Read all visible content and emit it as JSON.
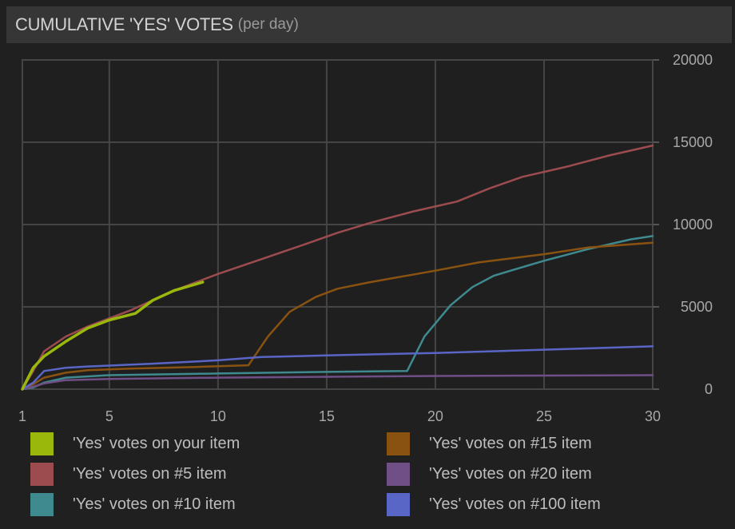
{
  "header": {
    "title": "CUMULATIVE 'YES' VOTES",
    "subtitle": "(per day)"
  },
  "chart_data": {
    "type": "line",
    "title": "CUMULATIVE 'YES' VOTES (per day)",
    "xlabel": "",
    "ylabel": "",
    "xlim": [
      1,
      30
    ],
    "ylim": [
      0,
      20000
    ],
    "xticks": [
      1,
      5,
      10,
      15,
      20,
      25,
      30
    ],
    "yticks": [
      0,
      5000,
      10000,
      15000,
      20000
    ],
    "grid": true,
    "y_axis_side": "right",
    "legend_position": "bottom",
    "series": [
      {
        "name": "'Yes' votes on your item",
        "color": "#9ab80c",
        "x": [
          1,
          1.5,
          2,
          3,
          4,
          5,
          6.2,
          7,
          8,
          9.3
        ],
        "y": [
          0,
          1300,
          2000,
          2900,
          3700,
          4200,
          4600,
          5400,
          6000,
          6500
        ]
      },
      {
        "name": "'Yes' votes on #5 item",
        "color": "#9c4c4f",
        "x": [
          1,
          1.5,
          2,
          3,
          4,
          5,
          6,
          7,
          8,
          10,
          12,
          14,
          15.5,
          17,
          19,
          21,
          22.5,
          24,
          26,
          28,
          30
        ],
        "y": [
          0,
          1100,
          2300,
          3200,
          3800,
          4300,
          4800,
          5400,
          6000,
          7000,
          7900,
          8800,
          9500,
          10100,
          10800,
          11400,
          12200,
          12900,
          13500,
          14200,
          14800
        ]
      },
      {
        "name": "'Yes' votes on #10 item",
        "color": "#3f8a8f",
        "x": [
          1,
          1.5,
          2,
          3,
          5,
          10,
          15,
          18.7,
          19.5,
          20.7,
          21.7,
          22.7,
          25,
          27,
          29,
          30
        ],
        "y": [
          0,
          100,
          400,
          700,
          850,
          950,
          1050,
          1100,
          3200,
          5100,
          6200,
          6900,
          7800,
          8500,
          9100,
          9300
        ]
      },
      {
        "name": "'Yes' votes on #15 item",
        "color": "#8a5210",
        "x": [
          1,
          1.5,
          2,
          3,
          4,
          6,
          9,
          11.4,
          12.3,
          13.3,
          14.5,
          15.5,
          17,
          20,
          22,
          25,
          27,
          30
        ],
        "y": [
          0,
          300,
          700,
          1000,
          1150,
          1250,
          1350,
          1450,
          3200,
          4700,
          5600,
          6100,
          6500,
          7200,
          7700,
          8200,
          8600,
          8900
        ]
      },
      {
        "name": "'Yes' votes on #20 item",
        "color": "#6f4f86",
        "x": [
          1,
          1.5,
          2,
          3,
          5,
          10,
          20,
          30
        ],
        "y": [
          0,
          150,
          350,
          550,
          620,
          700,
          800,
          850
        ]
      },
      {
        "name": "'Yes' votes on #100 item",
        "color": "#5a66c6",
        "x": [
          1,
          1.5,
          2,
          3,
          4,
          5,
          7,
          10,
          12,
          15,
          20,
          25,
          30
        ],
        "y": [
          0,
          400,
          1100,
          1300,
          1380,
          1430,
          1550,
          1750,
          1950,
          2050,
          2200,
          2400,
          2600
        ]
      }
    ]
  }
}
